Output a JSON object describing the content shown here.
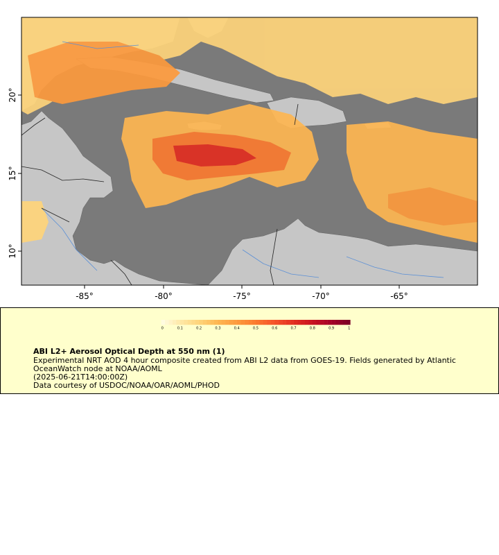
{
  "map": {
    "lat_ticks": [
      "20°",
      "15°",
      "10°"
    ],
    "lon_ticks": [
      "-85°",
      "-80°",
      "-75°",
      "-70°",
      "-65°"
    ],
    "extent": {
      "lon_min": -89,
      "lon_max": -60,
      "lat_min": 8,
      "lat_max": 25
    },
    "colors": {
      "ocean": "#7a7a7a",
      "land": "#c6c6c6",
      "rivers": "#5a8fd6",
      "borders": "#222222"
    }
  },
  "legend": {
    "title": "ABI L2+ Aerosol Optical Depth at 550 nm (1)",
    "description": "Experimental NRT AOD 4 hour composite created from ABI L2 data from GOES-19. Fields generated by Atlantic OceanWatch node at NOAA/AOML",
    "timestamp": "(2025-06-21T14:00:00Z)",
    "credit": "Data courtesy of USDOC/NOAA/OAR/AOML/PHOD",
    "colorbar_ticks": [
      "0",
      "0.1",
      "0.2",
      "0.3",
      "0.4",
      "0.5",
      "0.6",
      "0.7",
      "0.8",
      "0.9",
      "1"
    ],
    "colorbar_range": [
      0,
      1
    ],
    "colorbar_colors": [
      "#fffde6",
      "#fee9a8",
      "#fed47a",
      "#feb651",
      "#fd9a3d",
      "#fb7a30",
      "#f5522a",
      "#e22d20",
      "#c81321",
      "#a30026",
      "#7a0026"
    ]
  }
}
